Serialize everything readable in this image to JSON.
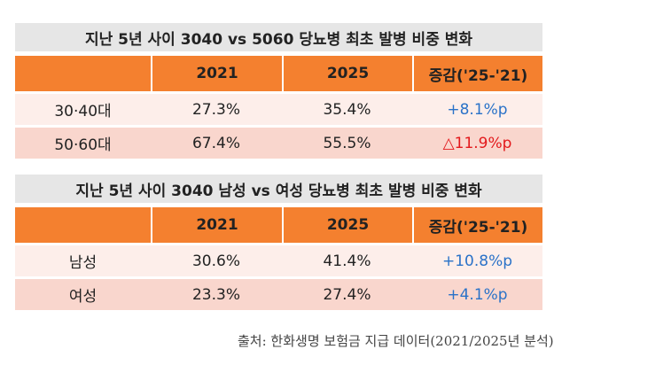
{
  "tables": [
    {
      "title": "지난 5년 사이 3040 vs 5060 당뇨병 최초 발병 비중 변화",
      "header": [
        "",
        "2021",
        "2025",
        "증감('25-'21)"
      ],
      "rows": [
        {
          "cells": [
            "30·40대",
            "27.3%",
            "35.4%",
            "+8.1%p"
          ],
          "change_color": "#2a72c8"
        },
        {
          "cells": [
            "50·60대",
            "67.4%",
            "55.5%",
            "△11.9%p"
          ],
          "change_color": "#e3191c"
        }
      ]
    },
    {
      "title": "지난 5년 사이 3040 남성 vs 여성 당뇨병 최초 발병 비중 변화",
      "header": [
        "",
        "2021",
        "2025",
        "증감('25-'21)"
      ],
      "rows": [
        {
          "cells": [
            "남성",
            "30.6%",
            "41.4%",
            "+10.8%p"
          ],
          "change_color": "#2a72c8"
        },
        {
          "cells": [
            "여성",
            "23.3%",
            "27.4%",
            "+4.1%p"
          ],
          "change_color": "#2a72c8"
        }
      ]
    }
  ],
  "source": "출처: 한화생명 보험금 지급 데이터(2021/2025년 분석)"
}
